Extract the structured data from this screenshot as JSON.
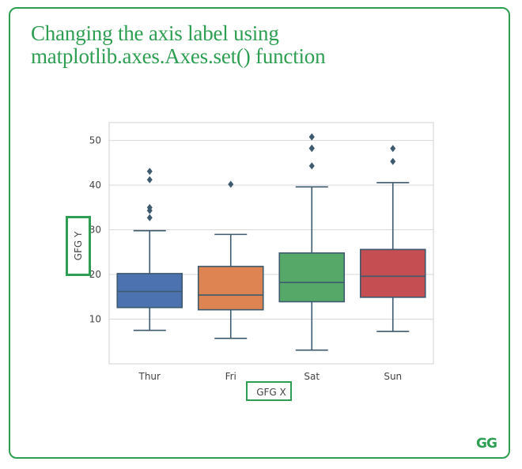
{
  "title_lines": [
    "Changing the axis label  using",
    "matplotlib.axes.Axes.set() function"
  ],
  "logo_text": "GG",
  "colors": {
    "brand": "#2e9e52",
    "grid": "#d9d9d9",
    "axes_frame": "#d0d0d0",
    "whisker": "#3d5a6e",
    "tick_text": "#444444"
  },
  "chart_data": {
    "type": "box",
    "xlabel": "GFG X",
    "ylabel": "GFG Y",
    "ylim": [
      0,
      54
    ],
    "yticks": [
      10,
      20,
      30,
      40,
      50
    ],
    "grid": true,
    "categories": [
      "Thur",
      "Fri",
      "Sat",
      "Sun"
    ],
    "boxes": [
      {
        "category": "Thur",
        "whislo": 7.5,
        "q1": 12.6,
        "med": 16.2,
        "q3": 20.2,
        "whishi": 29.8,
        "fliers": [
          32.7,
          34.3,
          35.0,
          41.2,
          43.1
        ],
        "color": "#4c72b0"
      },
      {
        "category": "Fri",
        "whislo": 5.7,
        "q1": 12.1,
        "med": 15.4,
        "q3": 21.8,
        "whishi": 28.97,
        "fliers": [
          40.2
        ],
        "color": "#dd8452"
      },
      {
        "category": "Sat",
        "whislo": 3.07,
        "q1": 13.9,
        "med": 18.2,
        "q3": 24.8,
        "whishi": 39.6,
        "fliers": [
          44.3,
          48.2,
          48.3,
          50.8,
          50.8
        ],
        "color": "#55a868"
      },
      {
        "category": "Sun",
        "whislo": 7.25,
        "q1": 14.9,
        "med": 19.6,
        "q3": 25.6,
        "whishi": 40.55,
        "fliers": [
          45.3,
          48.2
        ],
        "color": "#c44e52"
      }
    ]
  }
}
